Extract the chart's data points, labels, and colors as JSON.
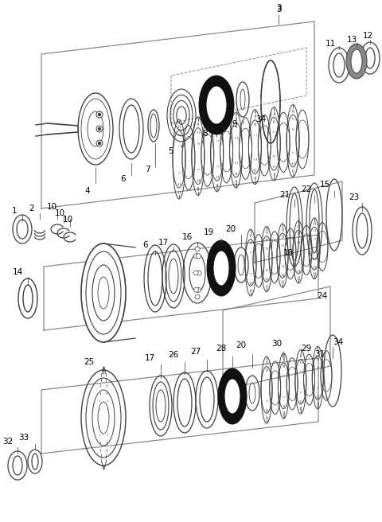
{
  "bg_color": "#ffffff",
  "line_color": "#404040",
  "dark_color": "#111111",
  "gray_color": "#888888",
  "box_color": "#666666",
  "figsize": [
    4.8,
    6.56
  ],
  "dpi": 100
}
